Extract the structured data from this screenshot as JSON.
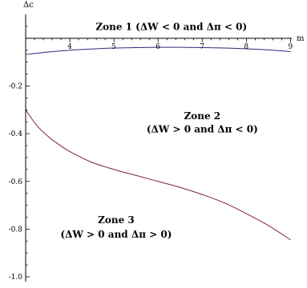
{
  "chart_data": {
    "type": "line",
    "title": "",
    "xlabel": "m",
    "ylabel": "Δc",
    "xlim": [
      3,
      9.1
    ],
    "ylim": [
      -1.02,
      0.1
    ],
    "x_major_ticks": [
      4,
      5,
      6,
      7,
      8,
      9
    ],
    "x_tick_labels": [
      "4",
      "5",
      "6",
      "7",
      "8",
      "9"
    ],
    "y_major_ticks": [
      -0.2,
      -0.4,
      -0.6,
      -0.8,
      -1.0
    ],
    "y_tick_labels": [
      "-0.2",
      "-0.4",
      "-0.6",
      "-0.8",
      "-1.0"
    ],
    "grid": false,
    "series": [
      {
        "color": "#2b2b7a",
        "x": [
          3,
          3.5,
          4,
          4.5,
          5,
          5.5,
          6,
          6.5,
          7,
          7.5,
          8,
          8.5,
          9
        ],
        "y": [
          -0.068,
          -0.058,
          -0.05,
          -0.045,
          -0.041,
          -0.039,
          -0.038,
          -0.038,
          -0.039,
          -0.041,
          -0.044,
          -0.049,
          -0.056
        ]
      },
      {
        "color": "#7a1f4a",
        "x": [
          3,
          3.25,
          3.5,
          3.75,
          4,
          4.5,
          5,
          5.5,
          6,
          6.5,
          7,
          7.5,
          8,
          8.5,
          9
        ],
        "y": [
          -0.3,
          -0.365,
          -0.41,
          -0.445,
          -0.475,
          -0.52,
          -0.55,
          -0.575,
          -0.6,
          -0.625,
          -0.655,
          -0.69,
          -0.735,
          -0.785,
          -0.845
        ]
      }
    ],
    "annotations": [
      {
        "text": "Zone 1 (ΔW < 0 and Δπ < 0)",
        "x": 6.3,
        "y": 0.035
      },
      {
        "text": "Zone 2",
        "x": 7.0,
        "y": -0.34
      },
      {
        "text": "(ΔW > 0 and Δπ < 0)",
        "x": 7.0,
        "y": -0.395
      },
      {
        "text": "Zone 3",
        "x": 5.05,
        "y": -0.775
      },
      {
        "text": "(ΔW > 0 and Δπ > 0)",
        "x": 5.05,
        "y": -0.835
      }
    ]
  }
}
